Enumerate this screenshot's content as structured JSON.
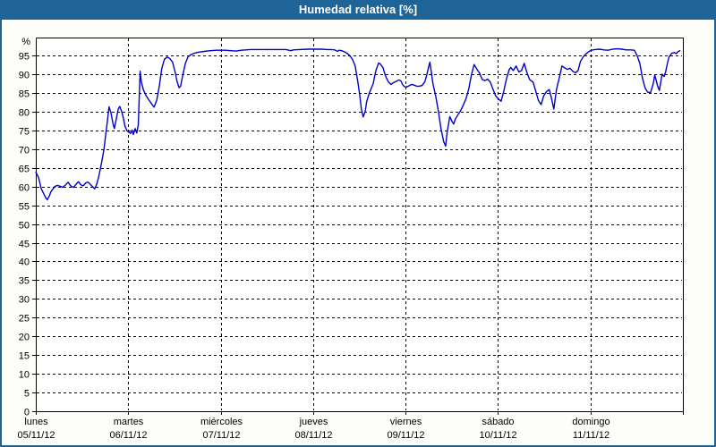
{
  "title": "Humedad relativa [%]",
  "colors": {
    "titlebar": "#1e6496",
    "frame": "#1e6496",
    "line": "#0000c8",
    "grid": "#000000",
    "text": "#000000",
    "plot_bg": "#ffffff"
  },
  "chart_data": {
    "type": "line",
    "title": "Humedad relativa [%]",
    "ylabel": "%",
    "xlabel": "",
    "ylim": [
      0,
      99.8
    ],
    "xlim": [
      0,
      168
    ],
    "grid": true,
    "legend": "none",
    "x_unit": "hours since Monday 00:00",
    "yticks": [
      0,
      5,
      10,
      15,
      20,
      25,
      30,
      35,
      40,
      45,
      50,
      55,
      60,
      65,
      70,
      75,
      80,
      85,
      90,
      95
    ],
    "xticks": [
      {
        "day": "lunes",
        "date": "05/11/12",
        "hour": 0
      },
      {
        "day": "martes",
        "date": "06/11/12",
        "hour": 24
      },
      {
        "day": "miércoles",
        "date": "07/11/12",
        "hour": 48
      },
      {
        "day": "jueves",
        "date": "08/11/12",
        "hour": 72
      },
      {
        "day": "viernes",
        "date": "09/11/12",
        "hour": 96
      },
      {
        "day": "sábado",
        "date": "10/11/12",
        "hour": 120
      },
      {
        "day": "domingo",
        "date": "11/11/12",
        "hour": 144
      },
      {
        "day": "",
        "date": "",
        "hour": 168
      }
    ],
    "series": [
      {
        "name": "Humedad relativa [%]",
        "points": [
          [
            0,
            63.8
          ],
          [
            0.7,
            62.5
          ],
          [
            1.4,
            59.5
          ],
          [
            2.1,
            58
          ],
          [
            2.6,
            57
          ],
          [
            3,
            56.5
          ],
          [
            3.5,
            57.5
          ],
          [
            3.9,
            58.6
          ],
          [
            4.4,
            59.3
          ],
          [
            4.9,
            60
          ],
          [
            5.6,
            60.3
          ],
          [
            6.3,
            60.1
          ],
          [
            7,
            59.8
          ],
          [
            7.7,
            60.4
          ],
          [
            8.4,
            61.2
          ],
          [
            8.8,
            60.5
          ],
          [
            9.3,
            60
          ],
          [
            9.8,
            59.8
          ],
          [
            10.2,
            60.3
          ],
          [
            10.7,
            60.9
          ],
          [
            11.1,
            61.3
          ],
          [
            11.6,
            60.6
          ],
          [
            12.1,
            60.2
          ],
          [
            12.5,
            60.4
          ],
          [
            13,
            61
          ],
          [
            13.5,
            61.2
          ],
          [
            13.9,
            60.9
          ],
          [
            14.4,
            60.3
          ],
          [
            14.9,
            59.8
          ],
          [
            15.3,
            59.4
          ],
          [
            15.8,
            60.6
          ],
          [
            16.3,
            62.4
          ],
          [
            16.7,
            64.5
          ],
          [
            17.2,
            67
          ],
          [
            17.7,
            70
          ],
          [
            18.1,
            73.5
          ],
          [
            18.6,
            77.5
          ],
          [
            19,
            81.3
          ],
          [
            19.5,
            79.8
          ],
          [
            20,
            77
          ],
          [
            20.4,
            75.5
          ],
          [
            20.9,
            78
          ],
          [
            21.4,
            80.7
          ],
          [
            21.8,
            81.4
          ],
          [
            22.3,
            80
          ],
          [
            22.8,
            78
          ],
          [
            23.2,
            76
          ],
          [
            23.7,
            74.9
          ],
          [
            24.2,
            74.5
          ],
          [
            24.6,
            74.2
          ],
          [
            25,
            75.1
          ],
          [
            25.3,
            73.9
          ],
          [
            25.8,
            75.5
          ],
          [
            26.2,
            74.3
          ],
          [
            26.6,
            76.5
          ],
          [
            27.1,
            90.8
          ],
          [
            27.4,
            88
          ],
          [
            27.9,
            85.9
          ],
          [
            28.6,
            84.3
          ],
          [
            29.3,
            83.2
          ],
          [
            30,
            82.2
          ],
          [
            30.7,
            81.2
          ],
          [
            31.4,
            83
          ],
          [
            32.1,
            87
          ],
          [
            32.7,
            91.5
          ],
          [
            33.4,
            94
          ],
          [
            34.1,
            94.6
          ],
          [
            34.8,
            94.2
          ],
          [
            35.5,
            93.2
          ],
          [
            36.2,
            90.5
          ],
          [
            36.7,
            88
          ],
          [
            37.2,
            86.4
          ],
          [
            37.6,
            86.8
          ],
          [
            38.1,
            89.5
          ],
          [
            38.8,
            92.8
          ],
          [
            39.5,
            94.6
          ],
          [
            40.2,
            95.2
          ],
          [
            41.1,
            95.6
          ],
          [
            42.3,
            95.9
          ],
          [
            43.7,
            96.1
          ],
          [
            45.3,
            96.3
          ],
          [
            46.9,
            96.4
          ],
          [
            48.1,
            96.4
          ],
          [
            49.2,
            96.4
          ],
          [
            50.6,
            96.3
          ],
          [
            52,
            96.2
          ],
          [
            53.4,
            96.4
          ],
          [
            55.7,
            96.6
          ],
          [
            58.1,
            96.6
          ],
          [
            60.4,
            96.6
          ],
          [
            62.7,
            96.6
          ],
          [
            65,
            96.6
          ],
          [
            66.2,
            96.3
          ],
          [
            66.9,
            96.5
          ],
          [
            68.5,
            96.6
          ],
          [
            70.8,
            96.7
          ],
          [
            72,
            96.7
          ],
          [
            73.2,
            96.7
          ],
          [
            74.3,
            96.7
          ],
          [
            75.5,
            96.6
          ],
          [
            76.6,
            96.6
          ],
          [
            77.6,
            96.5
          ],
          [
            78.3,
            96.1
          ],
          [
            78.7,
            96.4
          ],
          [
            79.4,
            96.3
          ],
          [
            80.1,
            96
          ],
          [
            80.8,
            95.6
          ],
          [
            81.5,
            95
          ],
          [
            82.2,
            94
          ],
          [
            82.9,
            92.2
          ],
          [
            83.6,
            88
          ],
          [
            84.1,
            84.5
          ],
          [
            84.5,
            80.8
          ],
          [
            85,
            78.6
          ],
          [
            85.5,
            80
          ],
          [
            85.9,
            82.7
          ],
          [
            86.6,
            85
          ],
          [
            87.6,
            87.5
          ],
          [
            88.3,
            91
          ],
          [
            89,
            93
          ],
          [
            89.4,
            92.8
          ],
          [
            90.1,
            91.8
          ],
          [
            90.8,
            89.5
          ],
          [
            91.5,
            88
          ],
          [
            92.2,
            87.3
          ],
          [
            92.9,
            87.8
          ],
          [
            93.6,
            88.1
          ],
          [
            94.3,
            88.5
          ],
          [
            94.8,
            88.2
          ],
          [
            95.2,
            87.3
          ],
          [
            95.7,
            86.7
          ],
          [
            96.2,
            86.6
          ],
          [
            96.9,
            86.9
          ],
          [
            97.6,
            87.3
          ],
          [
            98.2,
            87.1
          ],
          [
            98.9,
            86.8
          ],
          [
            99.6,
            86.8
          ],
          [
            100.3,
            87
          ],
          [
            101,
            88
          ],
          [
            101.5,
            89.8
          ],
          [
            102,
            92
          ],
          [
            102.3,
            93.2
          ],
          [
            102.7,
            90.5
          ],
          [
            103.1,
            87.5
          ],
          [
            103.8,
            84.3
          ],
          [
            104.5,
            80.3
          ],
          [
            105.2,
            75.5
          ],
          [
            105.9,
            72
          ],
          [
            106.4,
            70.8
          ],
          [
            106.8,
            74.5
          ],
          [
            107.5,
            78.7
          ],
          [
            108,
            77.5
          ],
          [
            108.5,
            76.7
          ],
          [
            108.9,
            78
          ],
          [
            109.6,
            79.2
          ],
          [
            110.3,
            80.3
          ],
          [
            111,
            81.8
          ],
          [
            111.7,
            83.5
          ],
          [
            112.4,
            86
          ],
          [
            113.1,
            89.8
          ],
          [
            113.8,
            92.6
          ],
          [
            114.5,
            91.4
          ],
          [
            115.2,
            90.3
          ],
          [
            115.9,
            88.6
          ],
          [
            116.6,
            88.3
          ],
          [
            117.3,
            88.7
          ],
          [
            118,
            87.9
          ],
          [
            118.7,
            86
          ],
          [
            119.4,
            84.2
          ],
          [
            120.1,
            83.4
          ],
          [
            120.8,
            82.8
          ],
          [
            121.5,
            85.5
          ],
          [
            122.2,
            88.8
          ],
          [
            122.9,
            91.2
          ],
          [
            123.3,
            91.8
          ],
          [
            124,
            91
          ],
          [
            124.7,
            92.2
          ],
          [
            125.4,
            90.6
          ],
          [
            126.1,
            91
          ],
          [
            126.8,
            92.9
          ],
          [
            127.5,
            90.5
          ],
          [
            128.2,
            88.6
          ],
          [
            129.1,
            87.9
          ],
          [
            129.8,
            85.5
          ],
          [
            130.5,
            83
          ],
          [
            131.2,
            81.9
          ],
          [
            131.9,
            84.3
          ],
          [
            132.6,
            85.4
          ],
          [
            133.3,
            85.9
          ],
          [
            133.8,
            84
          ],
          [
            134.5,
            80.7
          ],
          [
            135.2,
            86
          ],
          [
            135.9,
            89
          ],
          [
            136.6,
            92.2
          ],
          [
            137.3,
            91.7
          ],
          [
            138,
            91.3
          ],
          [
            138.7,
            91.6
          ],
          [
            139.4,
            90.8
          ],
          [
            140.1,
            90.4
          ],
          [
            140.8,
            91
          ],
          [
            141.4,
            93.4
          ],
          [
            142.1,
            94.6
          ],
          [
            142.8,
            95.4
          ],
          [
            143.5,
            96
          ],
          [
            144.2,
            96.4
          ],
          [
            145.2,
            96.6
          ],
          [
            146.3,
            96.7
          ],
          [
            147.5,
            96.5
          ],
          [
            148.6,
            96.4
          ],
          [
            149.8,
            96.7
          ],
          [
            151,
            96.8
          ],
          [
            152.1,
            96.7
          ],
          [
            153.3,
            96.5
          ],
          [
            154.4,
            96.5
          ],
          [
            155.4,
            96.4
          ],
          [
            156.1,
            95
          ],
          [
            156.8,
            93
          ],
          [
            157.5,
            89
          ],
          [
            158.2,
            86.3
          ],
          [
            158.9,
            85.2
          ],
          [
            159.6,
            85.1
          ],
          [
            160.3,
            87.5
          ],
          [
            160.7,
            89.8
          ],
          [
            161.4,
            87
          ],
          [
            161.9,
            85.7
          ],
          [
            162.6,
            90
          ],
          [
            163.1,
            89.4
          ],
          [
            163.5,
            90.5
          ],
          [
            164,
            93
          ],
          [
            164.4,
            94.6
          ],
          [
            165.1,
            95.6
          ],
          [
            165.8,
            95.8
          ],
          [
            166.3,
            95.5
          ],
          [
            166.7,
            96
          ],
          [
            167.2,
            96.3
          ]
        ]
      }
    ]
  }
}
